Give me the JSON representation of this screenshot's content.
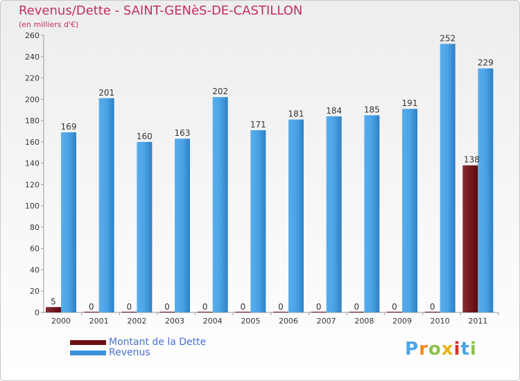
{
  "title": "Revenus/Dette - SAINT-GENèS-DE-CASTILLON",
  "subtitle": "(en milliers d'€)",
  "logo_text": "Proxiti",
  "colors": {
    "title": "#c0305e",
    "dette": "#6e1015",
    "revenus": "#3b92db",
    "legend_text": "#4a6fd6"
  },
  "chart_data": {
    "type": "bar",
    "categories": [
      "2000",
      "2001",
      "2002",
      "2003",
      "2004",
      "2005",
      "2006",
      "2007",
      "2008",
      "2009",
      "2010",
      "2011"
    ],
    "series": [
      {
        "name": "Montant de la Dette",
        "values": [
          5,
          0,
          0,
          0,
          0,
          0,
          0,
          0,
          0,
          0,
          0,
          138
        ]
      },
      {
        "name": "Revenus",
        "values": [
          169,
          201,
          160,
          163,
          202,
          171,
          181,
          184,
          185,
          191,
          252,
          229
        ]
      }
    ],
    "ylim": [
      0,
      260
    ],
    "yticks": [
      0,
      20,
      40,
      60,
      80,
      100,
      120,
      140,
      160,
      180,
      200,
      220,
      240,
      260
    ],
    "grid": false,
    "legend_position": "bottom-left"
  }
}
